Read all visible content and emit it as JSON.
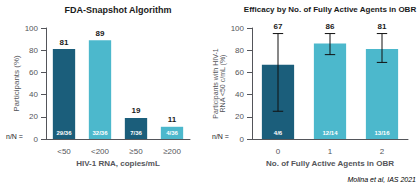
{
  "chart_data": [
    {
      "type": "bar",
      "title": "FDA-Snapshot Algorithm",
      "xlabel": "HIV-1 RNA, copies/mL",
      "ylabel": "Participants (%)",
      "categories": [
        "<50",
        "<200",
        "≥50",
        "≥200"
      ],
      "values": [
        81,
        89,
        19,
        11
      ],
      "colors": [
        "#1b5e7b",
        "#4cb8cc",
        "#1b5e7b",
        "#4cb8cc"
      ],
      "fractions": [
        "29/36",
        "32/36",
        "7/36",
        "4/36"
      ],
      "annotations": [
        "n/N ="
      ],
      "ylim": [
        0,
        100
      ],
      "yticks": [
        0,
        20,
        40,
        60,
        80,
        100
      ],
      "data_labels": true,
      "grid": false
    },
    {
      "type": "bar",
      "title": "Efficacy by No. of Fully Active Agents in OBR",
      "xlabel": "No. of Fully Active Agents in OBR",
      "ylabel": "Participants with HIV-1\nRNA <50 c/mL (%)",
      "categories": [
        "0",
        "1",
        "2"
      ],
      "values": [
        67,
        86,
        81
      ],
      "colors": [
        "#1b5e7b",
        "#4cb8cc",
        "#4cb8cc"
      ],
      "fractions": [
        "4/6",
        "12/14",
        "13/16"
      ],
      "errors_low": [
        42,
        10,
        12
      ],
      "errors_high": [
        28,
        9,
        14
      ],
      "annotations": [
        "n/N ="
      ],
      "caption": "Molina et al, IAS 2021",
      "ylim": [
        0,
        100
      ],
      "yticks": [
        0,
        20,
        40,
        60,
        80,
        100
      ],
      "data_labels": true,
      "grid": false
    }
  ]
}
